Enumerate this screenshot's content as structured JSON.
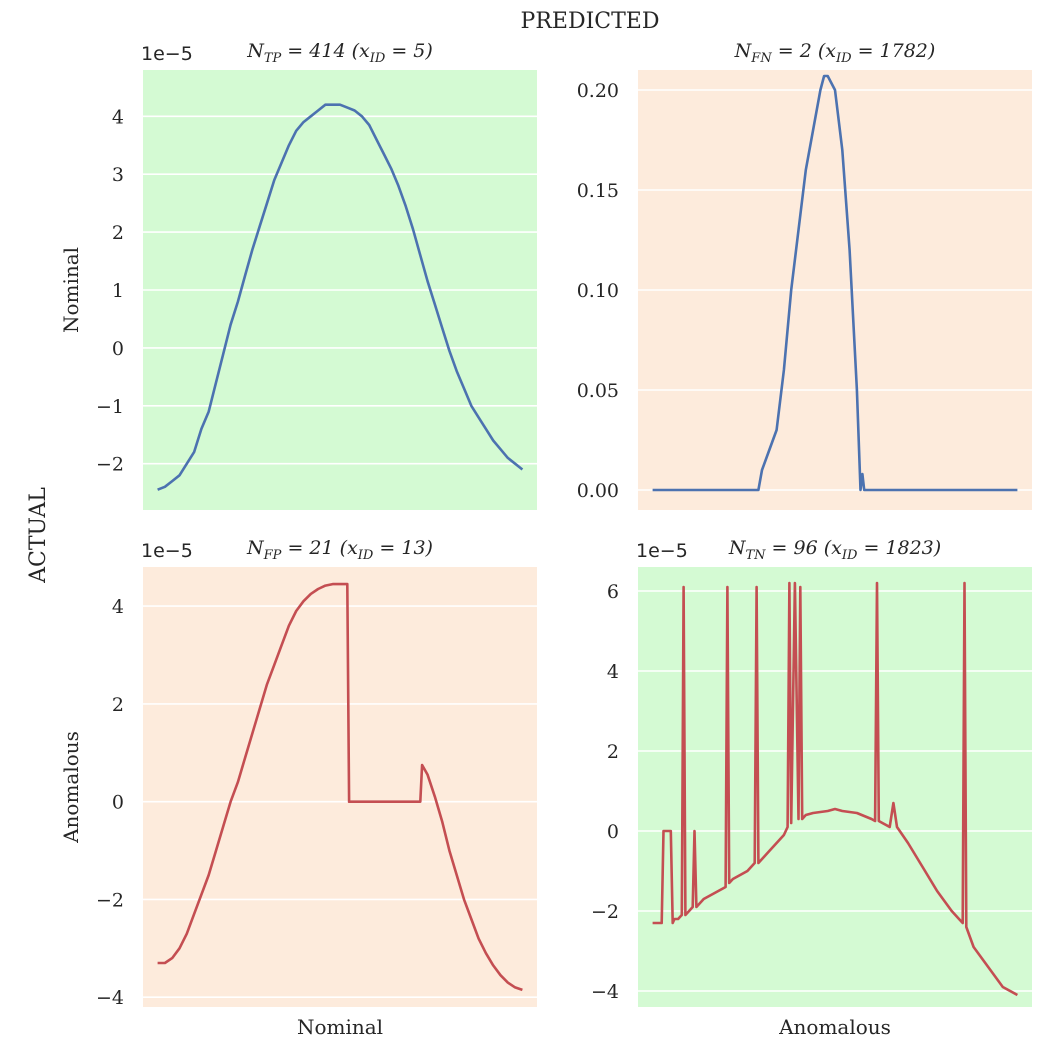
{
  "figure": {
    "suptitle": "PREDICTED",
    "row_label": "ACTUAL"
  },
  "colors": {
    "correct_bg": "#d4fad3",
    "wrong_bg": "#fdebdc",
    "nominal_line": "#4c72b0",
    "anomalous_line": "#c44e52",
    "grid": "#ffffff"
  },
  "chart_data": [
    {
      "type": "line",
      "title": "N_TP = 414    (x_ID = 5)",
      "title_parts": {
        "n": "N",
        "n_sub": "TP",
        "count": "= 414",
        "x": "(x",
        "x_sub": "ID",
        "xid": "= 5)"
      },
      "ylabel": "Nominal",
      "xlabel": "",
      "offset_text": "1e−5",
      "background": "correct",
      "series_color": "nominal",
      "ylim": [
        -2.8,
        4.8
      ],
      "yticks": [
        -2,
        -1,
        0,
        1,
        2,
        3,
        4
      ],
      "yticklabels": [
        "−2",
        "−1",
        "0",
        "1",
        "2",
        "3",
        "4"
      ],
      "xlim": [
        -4,
        104
      ],
      "x": [
        0,
        2,
        4,
        6,
        8,
        10,
        12,
        14,
        16,
        18,
        20,
        22,
        24,
        26,
        28,
        30,
        32,
        34,
        36,
        38,
        40,
        42,
        44,
        46,
        48,
        50,
        52,
        54,
        56,
        58,
        60,
        62,
        64,
        66,
        68,
        70,
        72,
        74,
        76,
        78,
        80,
        82,
        84,
        86,
        88,
        90,
        92,
        94,
        96,
        98,
        100
      ],
      "y": [
        -2.45,
        -2.4,
        -2.3,
        -2.2,
        -2.0,
        -1.8,
        -1.4,
        -1.1,
        -0.6,
        -0.1,
        0.4,
        0.8,
        1.25,
        1.7,
        2.1,
        2.5,
        2.9,
        3.2,
        3.5,
        3.75,
        3.9,
        4.0,
        4.1,
        4.2,
        4.2,
        4.2,
        4.15,
        4.1,
        4.0,
        3.85,
        3.6,
        3.35,
        3.1,
        2.8,
        2.45,
        2.05,
        1.6,
        1.15,
        0.75,
        0.35,
        -0.05,
        -0.4,
        -0.7,
        -1.0,
        -1.2,
        -1.4,
        -1.6,
        -1.75,
        -1.9,
        -2.0,
        -2.1
      ]
    },
    {
      "type": "line",
      "title": "N_FN = 2    (x_ID = 1782)",
      "title_parts": {
        "n": "N",
        "n_sub": "FN",
        "count": "= 2",
        "x": "(x",
        "x_sub": "ID",
        "xid": "= 1782)"
      },
      "ylabel": "",
      "xlabel": "",
      "offset_text": "",
      "background": "wrong",
      "series_color": "nominal",
      "ylim": [
        -0.01,
        0.21
      ],
      "yticks": [
        0.0,
        0.05,
        0.1,
        0.15,
        0.2
      ],
      "yticklabels": [
        "0.00",
        "0.05",
        "0.10",
        "0.15",
        "0.20"
      ],
      "xlim": [
        -4,
        104
      ],
      "x": [
        0,
        5,
        10,
        15,
        20,
        25,
        29,
        30,
        32,
        34,
        36,
        38,
        40,
        42,
        44,
        46,
        47,
        48,
        50,
        52,
        54,
        56,
        57,
        57.5,
        58,
        60,
        65,
        70,
        80,
        90,
        100
      ],
      "y": [
        0,
        0,
        0,
        0,
        0,
        0,
        0,
        0.01,
        0.02,
        0.03,
        0.06,
        0.1,
        0.13,
        0.16,
        0.18,
        0.2,
        0.207,
        0.207,
        0.2,
        0.17,
        0.12,
        0.05,
        0.0,
        0.008,
        0,
        0,
        0,
        0,
        0,
        0,
        0
      ]
    },
    {
      "type": "line",
      "title": "N_FP = 21    (x_ID = 13)",
      "title_parts": {
        "n": "N",
        "n_sub": "FP",
        "count": "= 21",
        "x": "(x",
        "x_sub": "ID",
        "xid": "= 13)"
      },
      "ylabel": "Anomalous",
      "xlabel": "Nominal",
      "offset_text": "1e−5",
      "background": "wrong",
      "series_color": "anomalous",
      "ylim": [
        -4.2,
        4.8
      ],
      "yticks": [
        -4,
        -2,
        0,
        2,
        4
      ],
      "yticklabels": [
        "−4",
        "−2",
        "0",
        "2",
        "4"
      ],
      "xlim": [
        -4,
        104
      ],
      "x": [
        0,
        2,
        4,
        6,
        8,
        10,
        12,
        14,
        16,
        18,
        20,
        22,
        24,
        26,
        28,
        30,
        32,
        34,
        36,
        38,
        40,
        42,
        44,
        46,
        48,
        50,
        52,
        52.5,
        54,
        60,
        66,
        72,
        72.5,
        74,
        76,
        78,
        80,
        82,
        84,
        86,
        88,
        90,
        92,
        94,
        96,
        98,
        100
      ],
      "y": [
        -3.3,
        -3.3,
        -3.2,
        -3.0,
        -2.7,
        -2.3,
        -1.9,
        -1.5,
        -1.0,
        -0.5,
        0.0,
        0.4,
        0.9,
        1.4,
        1.9,
        2.4,
        2.8,
        3.2,
        3.6,
        3.9,
        4.1,
        4.25,
        4.35,
        4.42,
        4.45,
        4.45,
        4.45,
        0.0,
        0.0,
        0.0,
        0.0,
        0.0,
        0.75,
        0.55,
        0.1,
        -0.4,
        -1.0,
        -1.5,
        -2.0,
        -2.4,
        -2.8,
        -3.1,
        -3.35,
        -3.55,
        -3.7,
        -3.8,
        -3.85
      ]
    },
    {
      "type": "line",
      "title": "N_TN = 96    (x_ID = 1823)",
      "title_parts": {
        "n": "N",
        "n_sub": "TN",
        "count": "= 96",
        "x": "(x",
        "x_sub": "ID",
        "xid": "= 1823)"
      },
      "ylabel": "",
      "xlabel": "Anomalous",
      "offset_text": "1e−5",
      "background": "correct",
      "series_color": "anomalous",
      "ylim": [
        -4.4,
        6.6
      ],
      "yticks": [
        -4,
        -2,
        0,
        2,
        4,
        6
      ],
      "yticklabels": [
        "−4",
        "−2",
        "0",
        "2",
        "4",
        "6"
      ],
      "xlim": [
        -4,
        104
      ],
      "x": [
        0,
        2,
        2.5,
        3,
        4,
        5,
        5.5,
        6,
        7,
        8,
        8.5,
        9,
        10,
        11,
        11.5,
        12,
        14,
        18,
        20,
        20.5,
        21,
        22,
        26,
        28,
        28.5,
        29,
        32,
        36,
        37,
        37.5,
        38,
        39,
        40,
        40.5,
        41,
        42,
        44,
        48,
        50,
        52,
        56,
        60,
        61,
        61.5,
        62,
        63,
        65,
        66,
        67,
        70,
        74,
        78,
        82,
        84,
        85,
        85.5,
        86,
        88,
        92,
        96,
        100
      ],
      "y": [
        -2.3,
        -2.3,
        -2.3,
        0.0,
        0.0,
        0.0,
        -2.3,
        -2.2,
        -2.2,
        -2.1,
        6.1,
        -2.1,
        -2.0,
        -1.9,
        0.0,
        -1.9,
        -1.7,
        -1.5,
        -1.4,
        6.1,
        -1.3,
        -1.2,
        -1.0,
        -0.8,
        6.1,
        -0.8,
        -0.5,
        -0.1,
        0.1,
        6.2,
        0.2,
        6.2,
        0.3,
        6.1,
        0.3,
        0.4,
        0.45,
        0.5,
        0.55,
        0.5,
        0.45,
        0.3,
        0.25,
        6.2,
        0.25,
        0.2,
        0.1,
        0.7,
        0.1,
        -0.3,
        -0.9,
        -1.5,
        -2.0,
        -2.2,
        -2.3,
        6.2,
        -2.4,
        -2.9,
        -3.4,
        -3.9,
        -4.1
      ]
    }
  ]
}
